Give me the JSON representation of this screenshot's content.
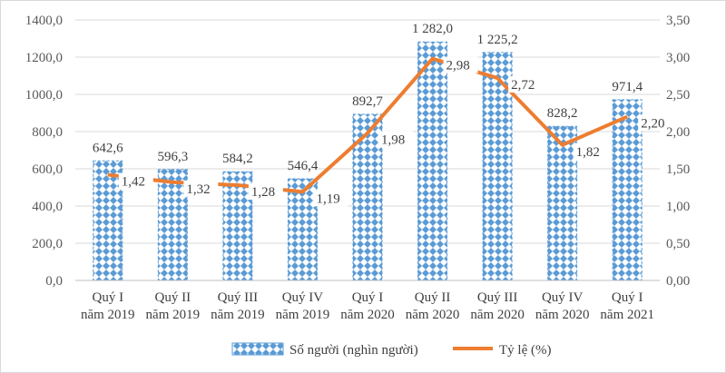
{
  "chart_data": {
    "type": "bar",
    "categories": [
      [
        "Quý I",
        "năm 2019"
      ],
      [
        "Quý II",
        "năm 2019"
      ],
      [
        "Quý III",
        "năm 2019"
      ],
      [
        "Quý IV",
        "năm 2019"
      ],
      [
        "Quý I",
        "năm 2020"
      ],
      [
        "Quý II",
        "năm 2020"
      ],
      [
        "Quý III",
        "năm 2020"
      ],
      [
        "Quý IV",
        "năm 2020"
      ],
      [
        "Quý I",
        "năm 2021"
      ]
    ],
    "series": [
      {
        "name": "Số người (nghìn người)",
        "type": "bar",
        "axis": "left",
        "values": [
          642.6,
          596.3,
          584.2,
          546.4,
          892.7,
          1282.0,
          1225.2,
          828.2,
          971.4
        ],
        "labels": [
          "642,6",
          "596,3",
          "584,2",
          "546,4",
          "892,7",
          "1 282,0",
          "1 225,2",
          "828,2",
          "971,4"
        ],
        "color": "#5b9bd5",
        "pattern": "diamond"
      },
      {
        "name": "Tỷ lệ (%)",
        "type": "line",
        "axis": "right",
        "values": [
          1.42,
          1.32,
          1.28,
          1.19,
          1.98,
          2.98,
          2.72,
          1.82,
          2.2
        ],
        "labels": [
          "1,42",
          "1,32",
          "1,28",
          "1,19",
          "1,98",
          "2,98",
          "2,72",
          "1,82",
          "2,20"
        ],
        "color": "#ed7d31"
      }
    ],
    "y_left": {
      "min": 0,
      "max": 1400,
      "step": 200,
      "tick_labels": [
        "0,0",
        "200,0",
        "400,0",
        "600,0",
        "800,0",
        "1000,0",
        "1200,0",
        "1400,0"
      ]
    },
    "y_right": {
      "min": 0,
      "max": 3.5,
      "step": 0.5,
      "tick_labels": [
        "0,00",
        "0,50",
        "1,00",
        "1,50",
        "2,00",
        "2,50",
        "3,00",
        "3,50"
      ]
    },
    "grid": true,
    "legend_position": "bottom",
    "title": ""
  }
}
